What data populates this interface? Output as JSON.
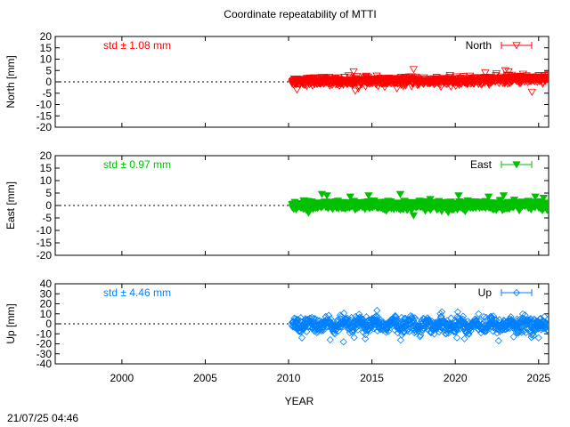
{
  "title": "Coordinate repeatability of MTTI",
  "footer": "21/07/25 04:46",
  "chart_data": [
    {
      "type": "scatter",
      "series": [
        {
          "name": "North",
          "color": "#ff0000",
          "marker": "triangle-down-open"
        }
      ],
      "ylabel": "North [mm]",
      "std_text": "std ± 1.08 mm",
      "ylim": [
        -20,
        20
      ],
      "yticks": [
        20,
        15,
        10,
        5,
        0,
        -5,
        -10,
        -15,
        -20
      ],
      "xlim": [
        1996,
        2025.6
      ],
      "data_range": [
        2010.2,
        2025.6
      ],
      "center": 0.2,
      "band": 1.6,
      "outliers": [
        [
          2013.9,
          4.5
        ],
        [
          2014.0,
          -4
        ],
        [
          2017.5,
          5.5
        ],
        [
          2021.8,
          4
        ],
        [
          2023.0,
          5
        ],
        [
          2023.2,
          4.5
        ],
        [
          2024.6,
          -4.5
        ],
        [
          2010.5,
          -3.5
        ],
        [
          2016.5,
          -3
        ]
      ],
      "reference_line": 0
    },
    {
      "type": "scatter",
      "series": [
        {
          "name": "East",
          "color": "#00c000",
          "marker": "triangle-down-filled"
        }
      ],
      "ylabel": "East [mm]",
      "std_text": "std ± 0.97 mm",
      "ylim": [
        -20,
        20
      ],
      "yticks": [
        20,
        15,
        10,
        5,
        0,
        -5,
        -10,
        -15,
        -20
      ],
      "xlim": [
        1996,
        2025.6
      ],
      "data_range": [
        2010.2,
        2025.6
      ],
      "center": 0,
      "band": 1.5,
      "outliers": [
        [
          2012.0,
          4.5
        ],
        [
          2012.3,
          4
        ],
        [
          2013.7,
          3.5
        ],
        [
          2014.8,
          4
        ],
        [
          2016.7,
          4.5
        ],
        [
          2017.5,
          -4
        ],
        [
          2020.2,
          4
        ],
        [
          2022.0,
          3.5
        ],
        [
          2022.9,
          4
        ],
        [
          2024.8,
          3.5
        ],
        [
          2025.3,
          3
        ],
        [
          2011.2,
          -3
        ],
        [
          2018.5,
          2.5
        ]
      ],
      "reference_line": 0
    },
    {
      "type": "scatter",
      "series": [
        {
          "name": "Up",
          "color": "#0080ff",
          "marker": "diamond-open"
        }
      ],
      "ylabel": "Up [mm]",
      "std_text": "std ± 4.46 mm",
      "ylim": [
        -40,
        40
      ],
      "yticks": [
        40,
        30,
        20,
        10,
        0,
        -10,
        -20,
        -30,
        -40
      ],
      "xlim": [
        1996,
        2025.6
      ],
      "data_range": [
        2010.2,
        2025.6
      ],
      "center": -1,
      "band": 7,
      "outliers": [
        [
          2010.8,
          -14
        ],
        [
          2012.5,
          -16
        ],
        [
          2013.3,
          -18
        ],
        [
          2014.6,
          -15
        ],
        [
          2016.4,
          8
        ],
        [
          2019.2,
          12
        ],
        [
          2020.1,
          -14
        ],
        [
          2021.4,
          10
        ],
        [
          2022.6,
          -17
        ],
        [
          2023.5,
          -13
        ],
        [
          2025.0,
          -14
        ]
      ],
      "reference_line": 0
    }
  ],
  "x_axis": {
    "label": "YEAR",
    "ticks": [
      2000,
      2005,
      2010,
      2015,
      2020,
      2025
    ]
  }
}
